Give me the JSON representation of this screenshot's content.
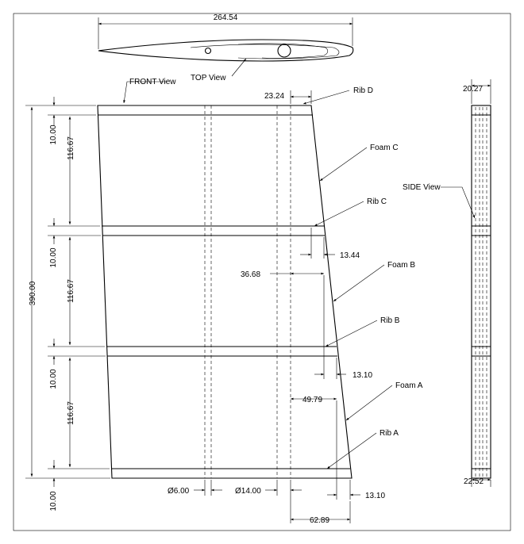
{
  "views": {
    "front": "FRONT View",
    "top": "TOP View",
    "side": "SIDE View"
  },
  "labels": {
    "rib_d": "Rib D",
    "foam_c": "Foam C",
    "rib_c": "Rib C",
    "foam_b": "Foam B",
    "rib_b": "Rib B",
    "foam_a": "Foam A",
    "rib_a": "Rib A"
  },
  "dimensions": {
    "top_span": "264.54",
    "side_top_width": "20.27",
    "side_bottom_width": "22.52",
    "rib_d_offset": "23.24",
    "rib_c_offset": "13.44",
    "foam_b_offset": "36.68",
    "rib_b_offset": "13.10",
    "foam_a_offset": "49.79",
    "rib_a_offset": "13.10",
    "bottom_offset": "62.89",
    "total_height": "390.00",
    "rib_thk_1": "10.00",
    "foam_len_1": "116.67",
    "rib_thk_2": "10.00",
    "foam_len_2": "116.67",
    "rib_thk_3": "10.00",
    "foam_len_3": "116.67",
    "rib_thk_4": "10.00",
    "spar_small": "Ø6.00",
    "spar_large": "Ø14.00"
  }
}
